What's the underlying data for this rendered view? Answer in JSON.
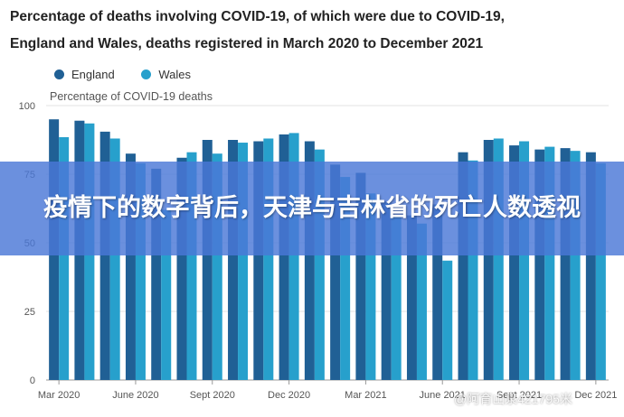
{
  "title_line1": "Percentage of deaths involving COVID-19, of which were due to COVID-19,",
  "title_line2": "England and Wales, deaths registered in March 2020 to December 2021",
  "legend": [
    {
      "name": "England",
      "color": "#206095"
    },
    {
      "name": "Wales",
      "color": "#27a0cc"
    }
  ],
  "banner_text": "疫情下的数字背后，天津与吉林省的死亡人数透视",
  "watermark": "@阿育山泉421795米",
  "chart_data": {
    "type": "bar",
    "title": "Percentage of deaths involving COVID-19, of which were due to COVID-19, England and Wales, deaths registered in March 2020 to December 2021",
    "ylabel": "Percentage of COVID-19 deaths",
    "ylim": [
      0,
      100
    ],
    "yticks": [
      0,
      25,
      50,
      75,
      100
    ],
    "grid": true,
    "legend_position": "top-left",
    "categories": [
      "Mar 2020",
      "Apr 2020",
      "May 2020",
      "June 2020",
      "July 2020",
      "Aug 2020",
      "Sept 2020",
      "Oct 2020",
      "Nov 2020",
      "Dec 2020",
      "Jan 2021",
      "Feb 2021",
      "Mar 2021",
      "Apr 2021",
      "May 2021",
      "June 2021",
      "July 2021",
      "Aug 2021",
      "Sept 2021",
      "Oct 2021",
      "Nov 2021",
      "Dec 2021"
    ],
    "xtick_labels": [
      "Mar 2020",
      "June 2020",
      "Sept 2020",
      "Dec 2020",
      "Mar 2021",
      "June 2021",
      "Sept 2021",
      "Dec 2021"
    ],
    "series": [
      {
        "name": "England",
        "color": "#206095",
        "values": [
          95,
          94.5,
          90.5,
          82.5,
          77,
          81,
          87.5,
          87.5,
          87,
          89.5,
          87,
          78.5,
          75.5,
          65,
          60,
          64,
          83,
          87.5,
          85.5,
          84,
          84.5,
          83
        ]
      },
      {
        "name": "Wales",
        "color": "#27a0cc",
        "values": [
          88.5,
          93.5,
          88,
          79,
          62,
          83,
          82.5,
          86.5,
          88,
          90,
          84,
          74,
          68,
          60,
          57,
          43.5,
          80,
          88,
          87,
          85,
          83.5,
          79
        ]
      }
    ]
  }
}
